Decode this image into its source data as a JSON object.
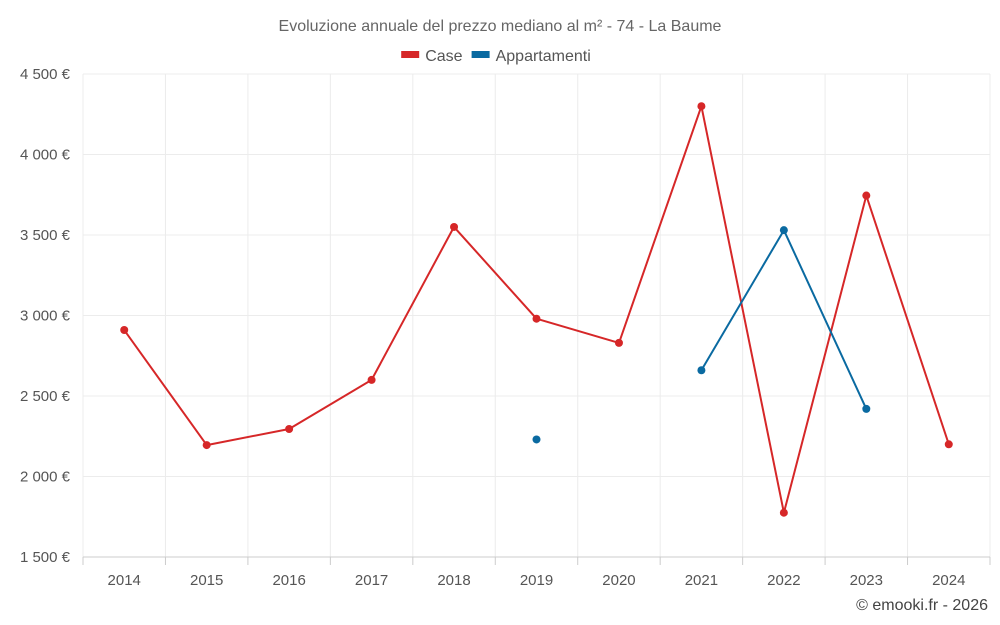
{
  "chart_data": {
    "type": "line",
    "title": "Evoluzione annuale del prezzo mediano al m² - 74 - La Baume",
    "categories": [
      "2014",
      "2015",
      "2016",
      "2017",
      "2018",
      "2019",
      "2020",
      "2021",
      "2022",
      "2023",
      "2024"
    ],
    "series": [
      {
        "name": "Case",
        "color": "#d62728",
        "values": [
          2910,
          2195,
          2295,
          2600,
          3550,
          2980,
          2830,
          4300,
          1775,
          3745,
          2200
        ]
      },
      {
        "name": "Appartamenti",
        "color": "#0a6aa1",
        "values": [
          null,
          null,
          null,
          null,
          null,
          2230,
          null,
          2660,
          3530,
          2420,
          null
        ]
      }
    ],
    "ylim": [
      1500,
      4500
    ],
    "yticks": [
      1500,
      2000,
      2500,
      3000,
      3500,
      4000,
      4500
    ],
    "ytick_labels": [
      "1 500 €",
      "2 000 €",
      "2 500 €",
      "3 000 €",
      "3 500 €",
      "4 000 €",
      "4 500 €"
    ],
    "grid": true,
    "legend_position": "top-center"
  },
  "credit": "© emooki.fr - 2026"
}
